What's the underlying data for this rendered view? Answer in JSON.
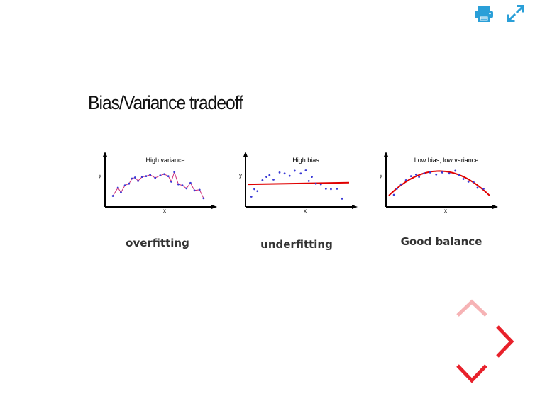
{
  "toolbar": {
    "print_icon": "printer-icon",
    "fullscreen_icon": "expand-arrows-icon",
    "icon_color": "#2a9fd8"
  },
  "slide": {
    "title": "Bias/Variance tradeoff",
    "panels": [
      {
        "subtitle": "High variance",
        "xlabel": "x",
        "ylabel": "y",
        "caption": "overfitting",
        "fit": "interpolate",
        "points": [
          [
            0.05,
            0.24
          ],
          [
            0.1,
            0.48
          ],
          [
            0.13,
            0.34
          ],
          [
            0.17,
            0.55
          ],
          [
            0.21,
            0.6
          ],
          [
            0.24,
            0.75
          ],
          [
            0.27,
            0.78
          ],
          [
            0.3,
            0.68
          ],
          [
            0.34,
            0.8
          ],
          [
            0.38,
            0.82
          ],
          [
            0.42,
            0.86
          ],
          [
            0.47,
            0.77
          ],
          [
            0.52,
            0.84
          ],
          [
            0.56,
            0.88
          ],
          [
            0.6,
            0.82
          ],
          [
            0.63,
            0.66
          ],
          [
            0.66,
            0.94
          ],
          [
            0.7,
            0.58
          ],
          [
            0.74,
            0.55
          ],
          [
            0.78,
            0.46
          ],
          [
            0.82,
            0.62
          ],
          [
            0.86,
            0.4
          ],
          [
            0.91,
            0.42
          ],
          [
            0.95,
            0.17
          ]
        ]
      },
      {
        "subtitle": "High bias",
        "xlabel": "x",
        "ylabel": "y",
        "caption": "underfitting",
        "fit": "line",
        "line": [
          0.58,
          0.63
        ],
        "points": [
          [
            0.03,
            0.22
          ],
          [
            0.06,
            0.44
          ],
          [
            0.09,
            0.38
          ],
          [
            0.14,
            0.7
          ],
          [
            0.18,
            0.8
          ],
          [
            0.21,
            0.85
          ],
          [
            0.25,
            0.72
          ],
          [
            0.31,
            0.93
          ],
          [
            0.36,
            0.9
          ],
          [
            0.41,
            0.83
          ],
          [
            0.46,
            0.98
          ],
          [
            0.52,
            0.9
          ],
          [
            0.57,
            0.99
          ],
          [
            0.6,
            0.68
          ],
          [
            0.63,
            0.8
          ],
          [
            0.67,
            0.6
          ],
          [
            0.72,
            0.58
          ],
          [
            0.77,
            0.45
          ],
          [
            0.82,
            0.44
          ],
          [
            0.88,
            0.45
          ],
          [
            0.93,
            0.16
          ]
        ]
      },
      {
        "subtitle": "Low bias, low variance",
        "xlabel": "x",
        "ylabel": "y",
        "caption": "Good balance",
        "fit": "curve",
        "points": [
          [
            0.05,
            0.27
          ],
          [
            0.08,
            0.45
          ],
          [
            0.12,
            0.58
          ],
          [
            0.17,
            0.7
          ],
          [
            0.22,
            0.82
          ],
          [
            0.27,
            0.87
          ],
          [
            0.3,
            0.8
          ],
          [
            0.35,
            0.9
          ],
          [
            0.41,
            0.93
          ],
          [
            0.47,
            0.87
          ],
          [
            0.53,
            0.93
          ],
          [
            0.6,
            0.9
          ],
          [
            0.66,
            0.98
          ],
          [
            0.7,
            0.85
          ],
          [
            0.74,
            0.74
          ],
          [
            0.79,
            0.66
          ],
          [
            0.84,
            0.65
          ],
          [
            0.88,
            0.48
          ],
          [
            0.94,
            0.45
          ]
        ]
      }
    ]
  },
  "navigation": {
    "up_icon": "chevron-up-icon",
    "right_icon": "chevron-right-icon",
    "down_icon": "chevron-down-icon",
    "color_active": "#e8212b",
    "color_disabled": "#f6b3b5"
  }
}
